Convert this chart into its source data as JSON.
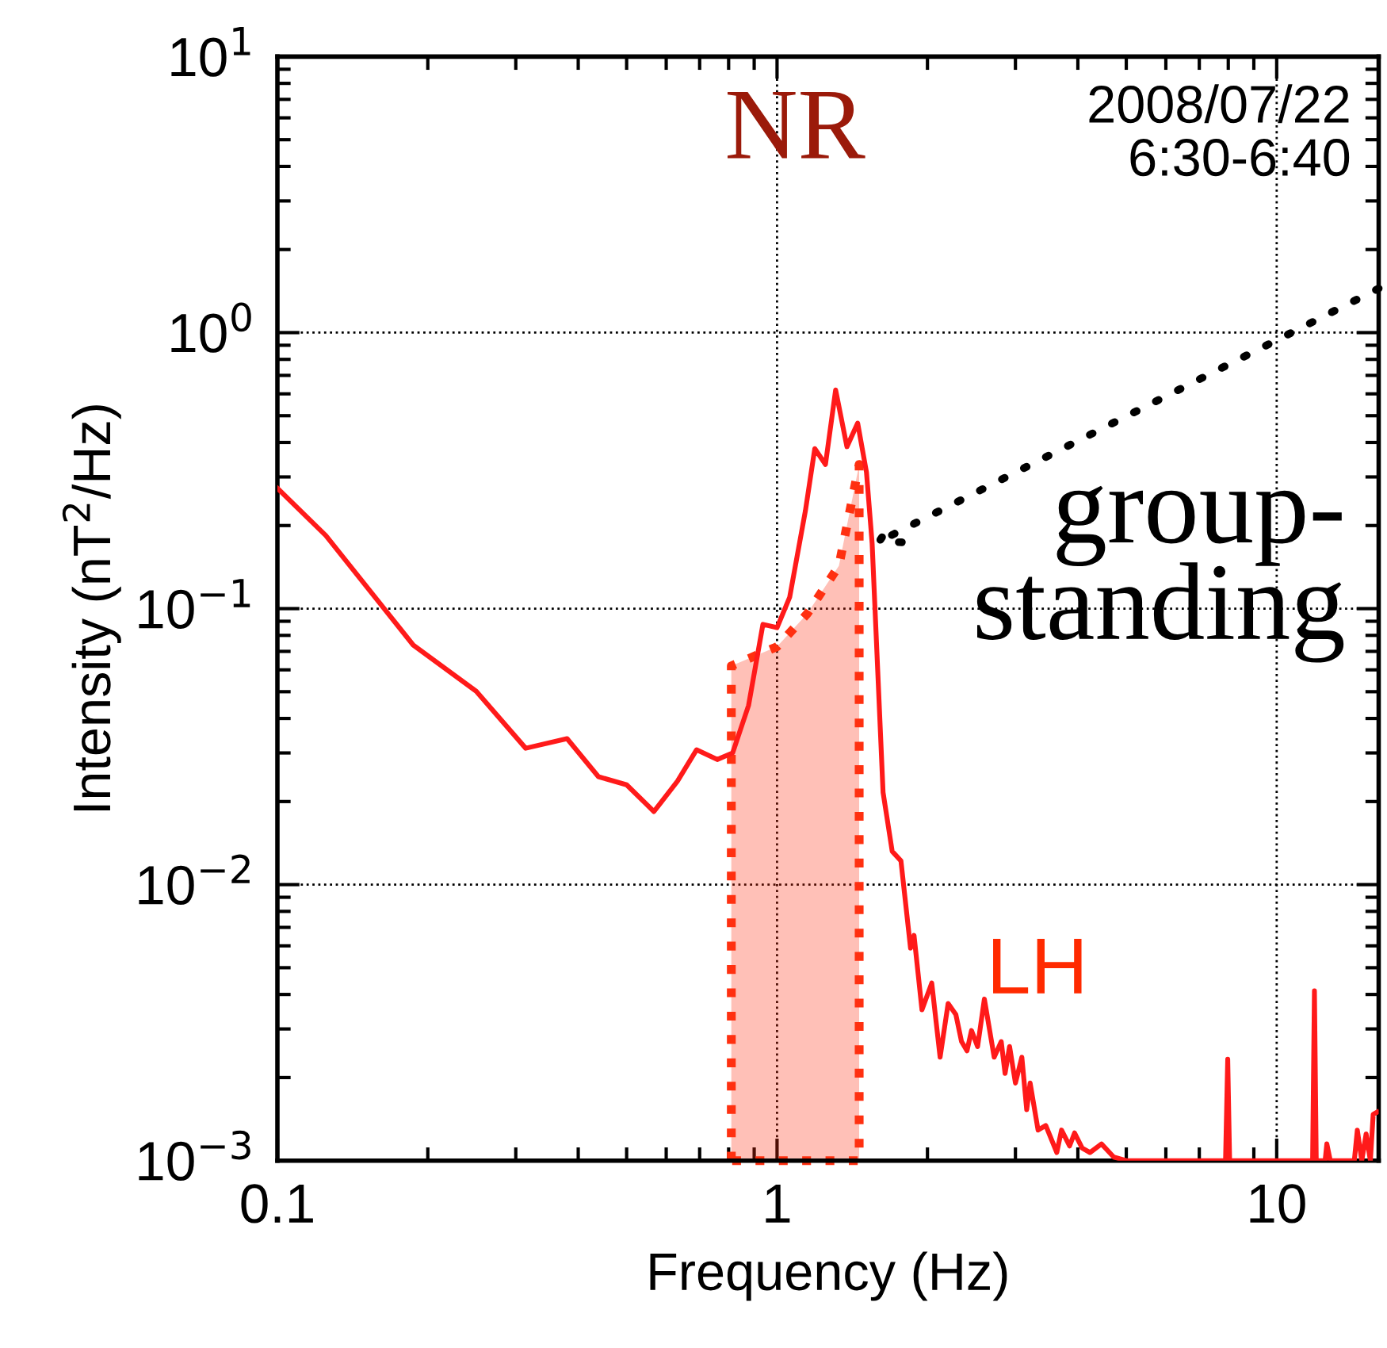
{
  "chart_data": {
    "type": "line",
    "xlabel": "Frequency (Hz)",
    "ylabel": "Intensity (nT$^{2}$/Hz)",
    "log": "xy",
    "grid": true,
    "line_style": "solid",
    "marker": "none",
    "xlim": [
      0.1,
      16
    ],
    "xticks": [
      0.1,
      1,
      10
    ],
    "ylim": [
      0.001,
      10
    ],
    "yticks": [
      {
        "value": 0.001,
        "label": "10$^{−3}$"
      },
      {
        "value": 0.01,
        "label": "10$^{−2}$"
      },
      {
        "value": 0.1,
        "label": "10$^{−1}$"
      },
      {
        "value": 1,
        "label": "10$^{0}$"
      },
      {
        "value": 10,
        "label": "10$^{1}$"
      }
    ],
    "annotations": [
      "NR",
      "2008/07/22\n6:30-6:40",
      "LH",
      {
        "text": "group-\nstanding",
        "x": 1.55,
        "y": 0.17
      }
    ],
    "series": [
      {
        "type": "area",
        "color": "#ff3010",
        "line_style": "dotted",
        "x": [
          0.81,
          1.0,
          1.15,
          1.33,
          1.46
        ],
        "values": [
          0.062,
          0.0728,
          0.096,
          0.143,
          0.333
        ]
      },
      {
        "color": "#ff1a1a",
        "x": [
          0.1,
          0.125,
          0.187,
          0.25,
          0.314,
          0.38,
          0.439,
          0.5,
          0.567,
          0.632,
          0.69,
          0.759,
          0.815,
          0.877,
          0.937,
          1.0,
          1.06,
          1.14,
          1.19,
          1.25,
          1.31,
          1.38,
          1.45,
          1.51,
          1.55,
          1.63,
          1.7,
          1.77,
          1.85,
          1.88,
          1.95,
          2.04,
          2.12,
          2.2,
          2.28,
          2.34,
          2.4,
          2.45,
          2.52,
          2.6,
          2.72,
          2.81,
          2.86,
          2.92,
          3.0,
          3.09,
          3.16,
          3.21,
          3.33,
          3.45,
          3.63,
          3.71,
          3.85,
          3.94,
          4.08,
          4.23,
          4.46,
          4.72,
          5.0,
          6.5,
          7.9,
          7.98,
          8.05,
          11.8,
          11.9,
          12.0,
          12.5,
          12.6,
          12.8,
          14.3,
          14.5,
          14.8,
          15.1,
          15.4,
          15.6,
          15.9
        ],
        "values": [
          0.273,
          0.184,
          0.0738,
          0.0502,
          0.0312,
          0.0338,
          0.0246,
          0.023,
          0.0184,
          0.0237,
          0.0308,
          0.0284,
          0.03,
          0.0446,
          0.0877,
          0.0853,
          0.11,
          0.227,
          0.38,
          0.333,
          0.62,
          0.386,
          0.47,
          0.312,
          0.172,
          0.0216,
          0.0132,
          0.0122,
          0.00589,
          0.00655,
          0.00352,
          0.0044,
          0.00237,
          0.00371,
          0.00338,
          0.0027,
          0.0025,
          0.00296,
          0.00259,
          0.00385,
          0.00237,
          0.0027,
          0.00207,
          0.00259,
          0.00191,
          0.00237,
          0.00153,
          0.00191,
          0.00129,
          0.00134,
          0.00107,
          0.00129,
          0.00113,
          0.00126,
          0.00111,
          0.00107,
          0.00115,
          0.00103,
          0.001,
          0.001,
          0.001,
          0.00233,
          0.001,
          0.001,
          0.00412,
          0.001,
          0.001,
          0.00115,
          0.001,
          0.001,
          0.00129,
          0.001,
          0.00125,
          0.001,
          0.00147,
          0.0015
        ]
      }
    ]
  }
}
